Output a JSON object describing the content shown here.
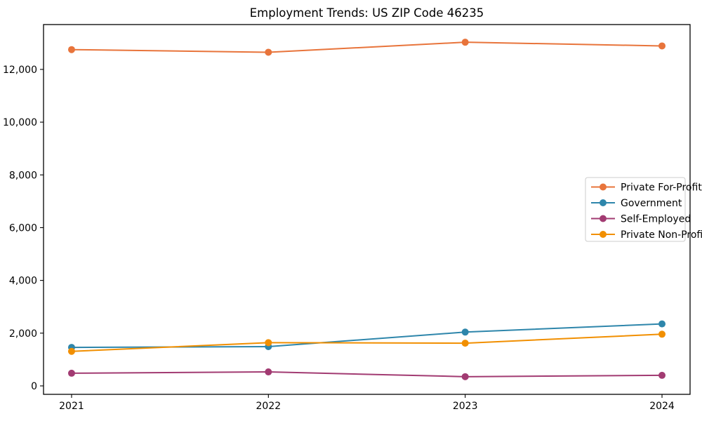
{
  "chart_data": {
    "type": "line",
    "title": "Employment Trends: US ZIP Code 46235",
    "categories": [
      "2021",
      "2022",
      "2023",
      "2024"
    ],
    "series": [
      {
        "name": "Private For-Profit",
        "color": "#E8743B",
        "values": [
          12750,
          12650,
          13030,
          12890
        ]
      },
      {
        "name": "Government",
        "color": "#2E86AB",
        "values": [
          1460,
          1490,
          2040,
          2350
        ]
      },
      {
        "name": "Self-Employed",
        "color": "#A23B72",
        "values": [
          480,
          530,
          350,
          400
        ]
      },
      {
        "name": "Private Non-Profit",
        "color": "#F18F01",
        "values": [
          1310,
          1640,
          1620,
          1960
        ]
      }
    ],
    "xlabel": "",
    "ylabel": "",
    "yticks": [
      0,
      2000,
      4000,
      6000,
      8000,
      10000,
      12000
    ],
    "ylim": [
      -320,
      13700
    ],
    "grid": false,
    "marker": "circle",
    "legend_position": "center right",
    "axis_color": "#000000",
    "background_color": "#ffffff",
    "legend_border_color": "#cccccc"
  }
}
